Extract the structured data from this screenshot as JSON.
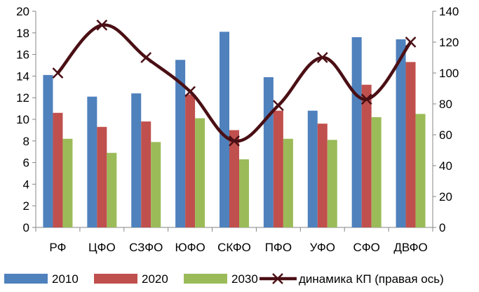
{
  "chart_data": {
    "type": "bar",
    "categories": [
      "РФ",
      "ЦФО",
      "СЗФО",
      "ЮФО",
      "СКФО",
      "ПФО",
      "УФО",
      "СФО",
      "ДВФО"
    ],
    "series": [
      {
        "name": "2010",
        "kind": "bar",
        "axis": "left",
        "color": "#4f81bd",
        "values": [
          14.1,
          12.1,
          12.4,
          15.5,
          18.1,
          13.9,
          10.8,
          17.6,
          17.4
        ]
      },
      {
        "name": "2020",
        "kind": "bar",
        "axis": "left",
        "color": "#c0504d",
        "values": [
          10.6,
          9.3,
          9.8,
          12.3,
          9.0,
          10.8,
          9.6,
          13.2,
          15.3
        ]
      },
      {
        "name": "2030",
        "kind": "bar",
        "axis": "left",
        "color": "#9bbb59",
        "values": [
          8.2,
          6.9,
          7.9,
          10.1,
          6.3,
          8.2,
          8.1,
          10.2,
          10.5
        ]
      },
      {
        "name": "динамика КП (правая ось)",
        "kind": "line",
        "axis": "right",
        "color": "#4a0f14",
        "marker": "x-cross",
        "values": [
          100,
          131,
          110,
          88,
          56,
          79,
          110,
          83,
          120
        ]
      }
    ],
    "ylim_left": [
      0,
      20
    ],
    "yticks_left": [
      "0",
      "2",
      "4",
      "6",
      "8",
      "10",
      "12",
      "14",
      "16",
      "18",
      "20"
    ],
    "ylim_right": [
      0,
      140
    ],
    "yticks_right": [
      "0",
      "20",
      "40",
      "60",
      "80",
      "100",
      "120",
      "140"
    ],
    "grid": false,
    "legend_position": "bottom"
  }
}
